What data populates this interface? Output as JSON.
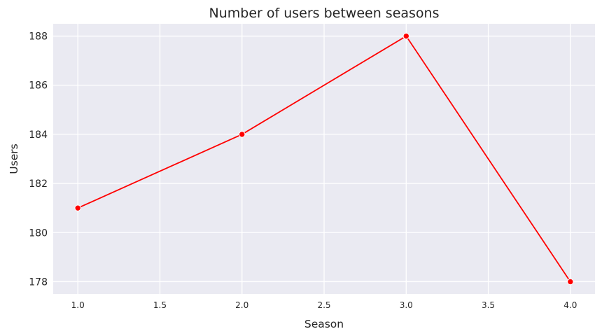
{
  "chart_data": {
    "type": "line",
    "title": "Number of users between seasons",
    "xlabel": "Season",
    "ylabel": "Users",
    "x": [
      1.0,
      2.0,
      3.0,
      4.0
    ],
    "series": [
      {
        "values": [
          181,
          184,
          188,
          178
        ]
      }
    ],
    "xlim": [
      0.85,
      4.15
    ],
    "ylim": [
      177.5,
      188.5
    ],
    "x_ticks": [
      "1.0",
      "1.5",
      "2.0",
      "2.5",
      "3.0",
      "3.5",
      "4.0"
    ],
    "y_ticks": [
      "178",
      "180",
      "182",
      "184",
      "186",
      "188"
    ],
    "grid": true,
    "line_color": "#ff0000",
    "background_color": "#eaeaf2",
    "grid_color": "#ffffff"
  }
}
